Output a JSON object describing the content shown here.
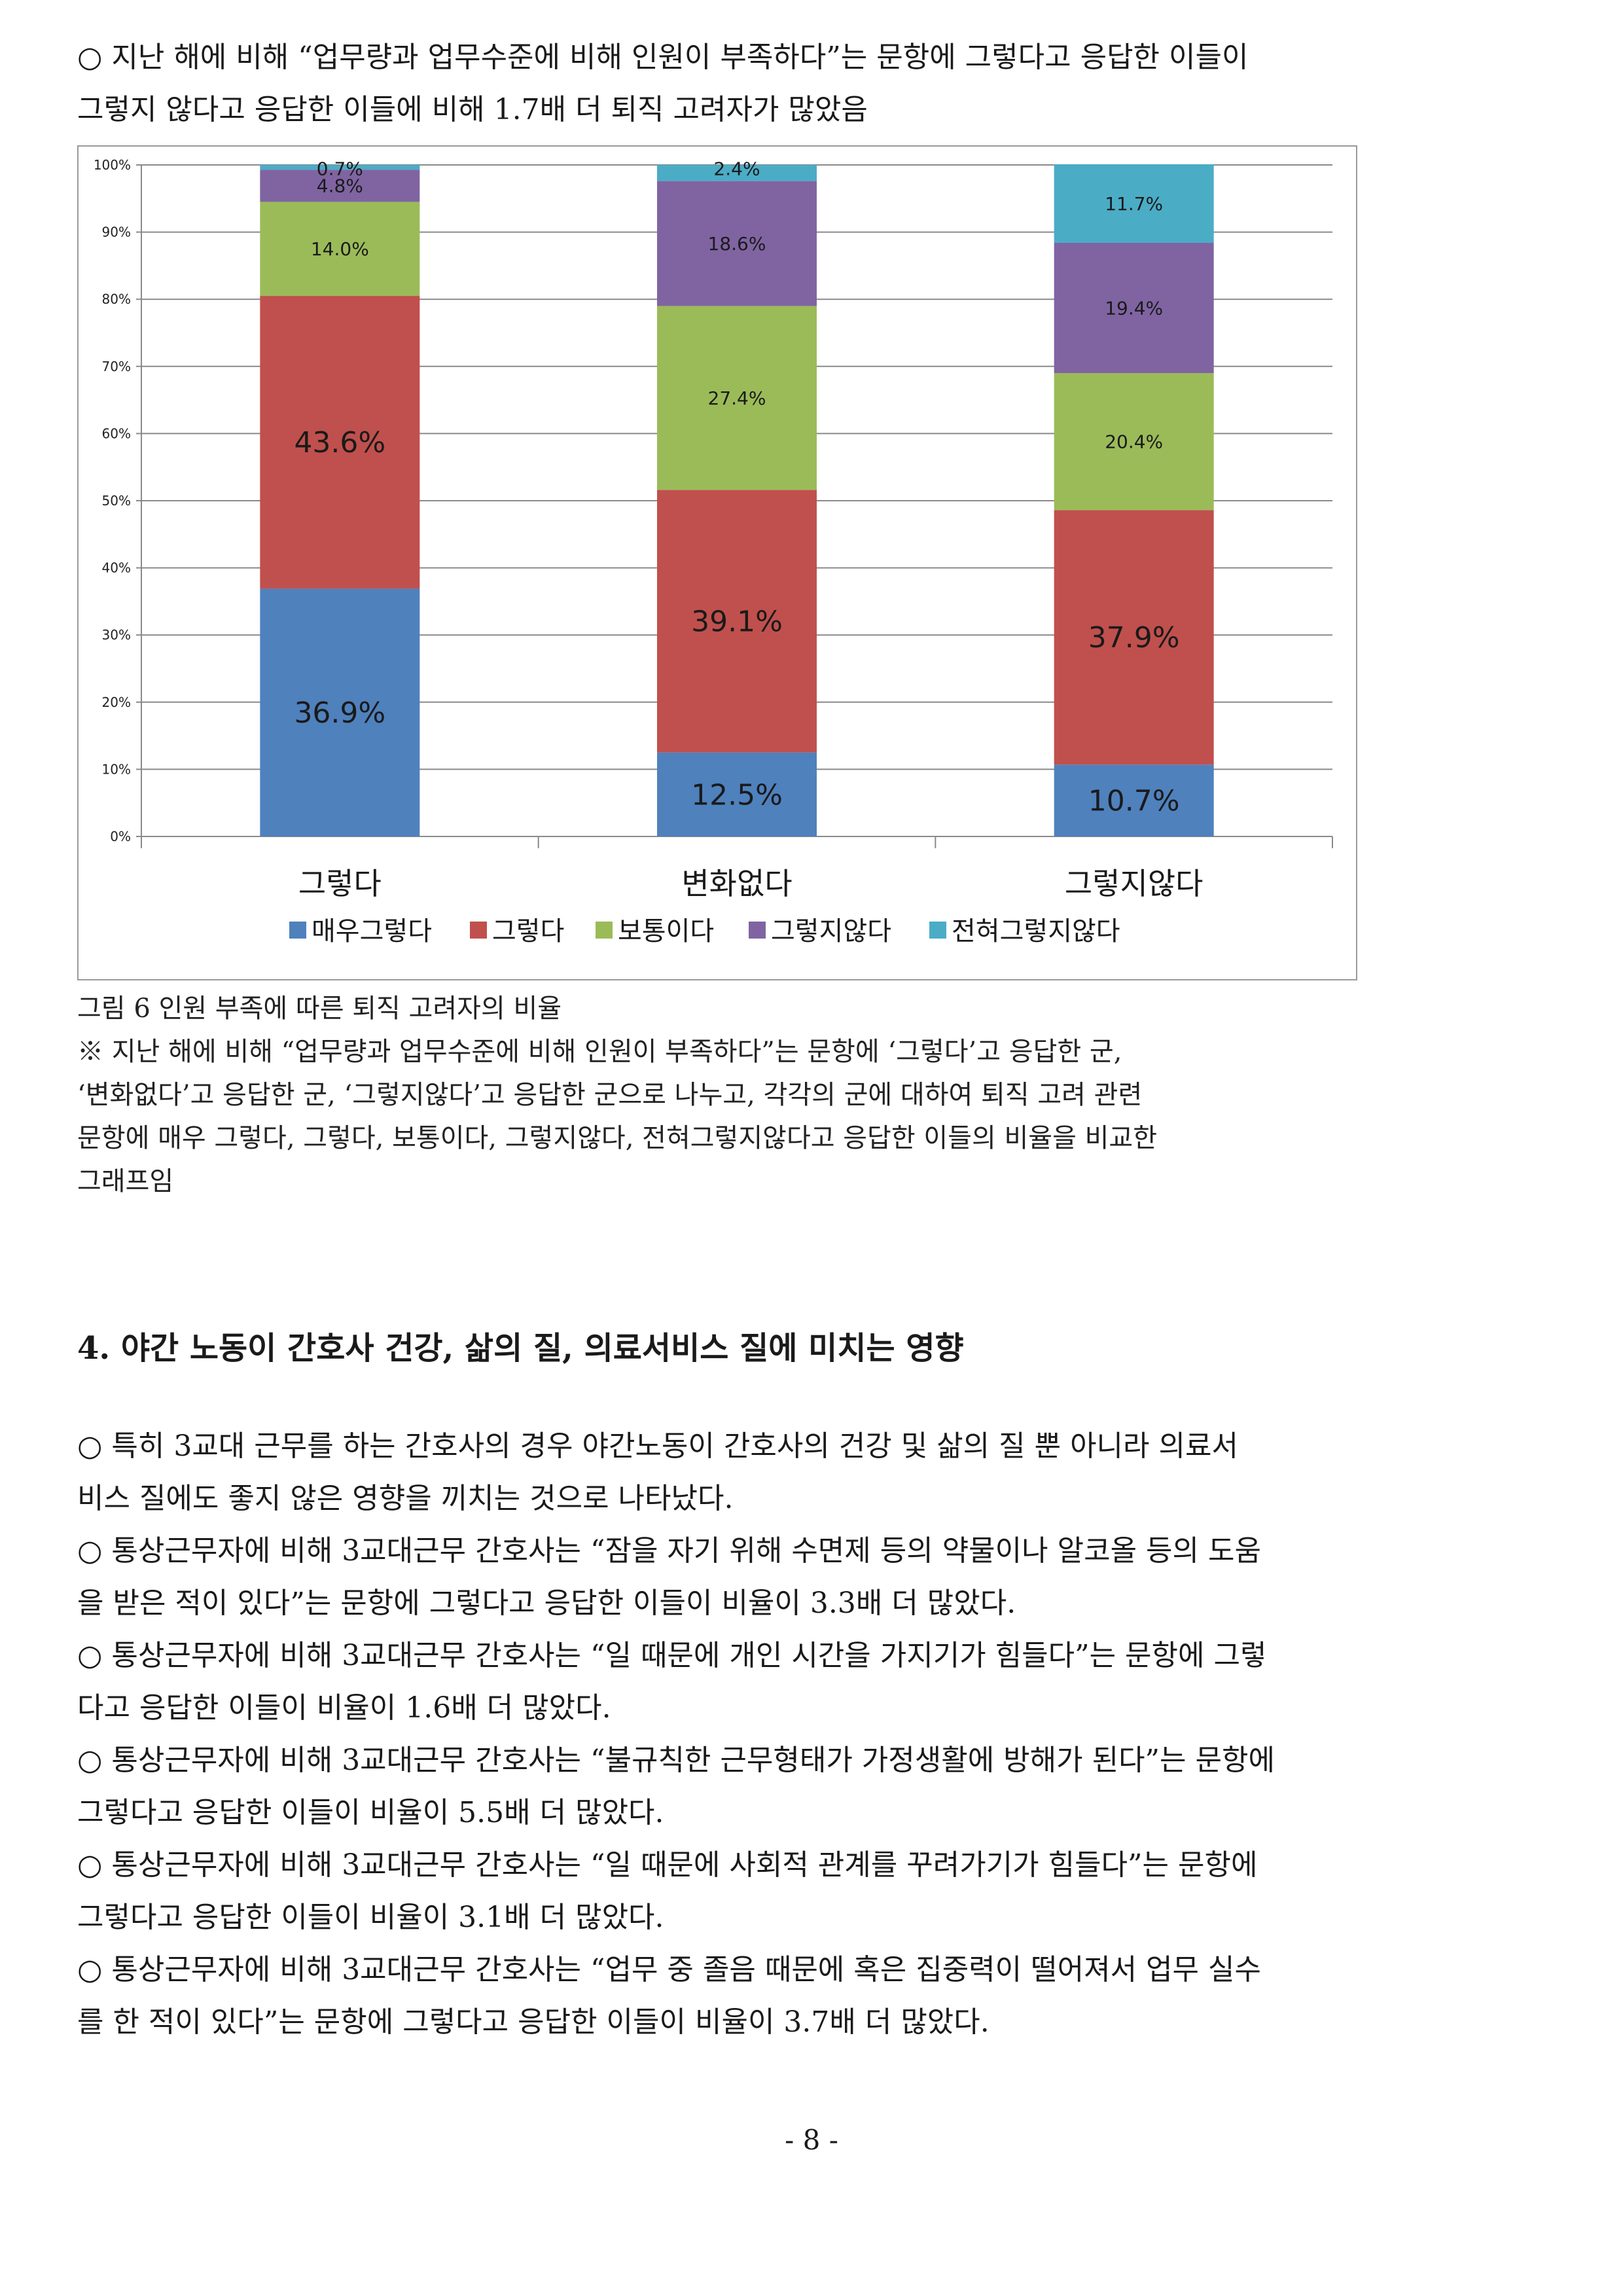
{
  "intro": {
    "lines": [
      "○ 지난 해에 비해 “업무량과 업무수준에 비해 인원이 부족하다”는 문항에 그렇다고 응답한 이들이",
      "그렇지 않다고 응답한 이들에 비해 1.7배 더 퇴직 고려자가 많았음"
    ]
  },
  "chart_data": {
    "type": "bar",
    "stacked": true,
    "percent_stacked": true,
    "categories": [
      "그렇다",
      "변화없다",
      "그렇지않다"
    ],
    "ylim": [
      0,
      100
    ],
    "yticks": [
      "0%",
      "10%",
      "20%",
      "30%",
      "40%",
      "50%",
      "60%",
      "70%",
      "80%",
      "90%",
      "100%"
    ],
    "grid": true,
    "legend_position": "bottom",
    "series": [
      {
        "name": "매우그렇다",
        "color": "#4F81BD",
        "values": [
          36.9,
          12.5,
          10.7
        ],
        "labels": [
          "36.9%",
          "12.5%",
          "10.7%"
        ]
      },
      {
        "name": "그렇다",
        "color": "#C0504D",
        "values": [
          43.6,
          39.1,
          37.9
        ],
        "labels": [
          "43.6%",
          "39.1%",
          "37.9%"
        ]
      },
      {
        "name": "보통이다",
        "color": "#9BBB59",
        "values": [
          14.0,
          27.4,
          20.4
        ],
        "labels": [
          "14.0%",
          "27.4%",
          "20.4%"
        ]
      },
      {
        "name": "그렇지않다",
        "color": "#8064A2",
        "values": [
          4.8,
          18.6,
          19.4
        ],
        "labels": [
          "4.8%",
          "18.6%",
          "19.4%"
        ]
      },
      {
        "name": "전혀그렇지않다",
        "color": "#4BACC6",
        "values": [
          0.7,
          2.4,
          11.7
        ],
        "labels": [
          "0.7%",
          "2.4%",
          "11.7%"
        ]
      }
    ]
  },
  "caption": {
    "lines": [
      "그림 6 인원 부족에 따른 퇴직 고려자의 비율",
      "※ 지난 해에 비해 “업무량과 업무수준에 비해 인원이 부족하다”는 문항에 ‘그렇다’고 응답한 군,",
      "‘변화없다’고 응답한 군, ‘그렇지않다’고 응답한 군으로 나누고, 각각의 군에 대하여 퇴직 고려 관련",
      "문항에 매우 그렇다, 그렇다, 보통이다, 그렇지않다, 전혀그렇지않다고 응답한 이들의 비율을 비교한",
      "그래프임"
    ]
  },
  "section": {
    "heading": "4. 야간 노동이 간호사 건강, 삶의 질, 의료서비스 질에 미치는 영향",
    "lines": [
      "○ 특히 3교대 근무를 하는 간호사의 경우 야간노동이 간호사의 건강 및 삶의 질 뿐 아니라 의료서",
      "비스 질에도 좋지 않은 영향을 끼치는 것으로 나타났다.",
      "○ 통상근무자에 비해 3교대근무 간호사는 “잠을 자기 위해 수면제 등의 약물이나 알코올 등의 도움",
      "을 받은 적이 있다”는 문항에 그렇다고 응답한 이들이 비율이 3.3배 더 많았다.",
      "○ 통상근무자에 비해 3교대근무 간호사는 “일 때문에 개인 시간을 가지기가 힘들다”는 문항에 그렇",
      "다고 응답한 이들이 비율이 1.6배 더 많았다.",
      "○ 통상근무자에 비해 3교대근무 간호사는 “불규칙한 근무형태가 가정생활에 방해가 된다”는 문항에",
      "그렇다고 응답한 이들이 비율이 5.5배 더 많았다.",
      "○ 통상근무자에 비해 3교대근무 간호사는 “일 때문에 사회적 관계를 꾸려가기가 힘들다”는 문항에",
      "그렇다고 응답한 이들이 비율이 3.1배 더 많았다.",
      "○ 통상근무자에 비해 3교대근무 간호사는 “업무 중 졸음 때문에 혹은 집중력이 떨어져서 업무 실수",
      "를 한 적이 있다”는 문항에 그렇다고 응답한 이들이 비율이 3.7배 더 많았다."
    ]
  },
  "page_number": "- 8 -"
}
